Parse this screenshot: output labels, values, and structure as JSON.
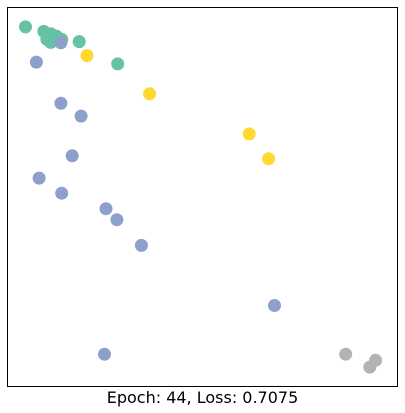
{
  "chart_data": {
    "type": "scatter",
    "title": "",
    "xlabel": "Epoch: 44, Loss: 0.7075",
    "ylabel": "",
    "xlim": [
      0,
      100
    ],
    "ylim": [
      0,
      100
    ],
    "axes_visible": false,
    "grid": false,
    "legend": "none",
    "series": [
      {
        "color": "#66c2a5",
        "points": [
          {
            "x": 4.5,
            "y": 95.0
          },
          {
            "x": 9.2,
            "y": 93.8
          },
          {
            "x": 11.0,
            "y": 93.2
          },
          {
            "x": 12.5,
            "y": 92.5
          },
          {
            "x": 13.8,
            "y": 91.7
          },
          {
            "x": 10.0,
            "y": 91.7
          },
          {
            "x": 11.0,
            "y": 90.9
          },
          {
            "x": 18.3,
            "y": 91.1
          },
          {
            "x": 28.2,
            "y": 85.2
          }
        ]
      },
      {
        "color": "#8da0cb",
        "points": [
          {
            "x": 13.6,
            "y": 90.8
          },
          {
            "x": 7.3,
            "y": 85.7
          },
          {
            "x": 13.6,
            "y": 74.8
          },
          {
            "x": 18.8,
            "y": 71.4
          },
          {
            "x": 16.5,
            "y": 60.9
          },
          {
            "x": 8.0,
            "y": 55.0
          },
          {
            "x": 13.8,
            "y": 51.0
          },
          {
            "x": 25.2,
            "y": 46.9
          },
          {
            "x": 28.0,
            "y": 44.0
          },
          {
            "x": 34.3,
            "y": 37.2
          },
          {
            "x": 68.5,
            "y": 21.3
          },
          {
            "x": 24.8,
            "y": 8.4
          }
        ]
      },
      {
        "color": "#ffd92f",
        "points": [
          {
            "x": 20.3,
            "y": 87.4
          },
          {
            "x": 36.4,
            "y": 77.3
          },
          {
            "x": 62.0,
            "y": 66.7
          },
          {
            "x": 67.0,
            "y": 60.1
          }
        ]
      },
      {
        "color": "#b3b3b3",
        "points": [
          {
            "x": 86.8,
            "y": 8.4
          },
          {
            "x": 94.5,
            "y": 6.8
          },
          {
            "x": 93.0,
            "y": 5.0
          }
        ]
      }
    ]
  }
}
